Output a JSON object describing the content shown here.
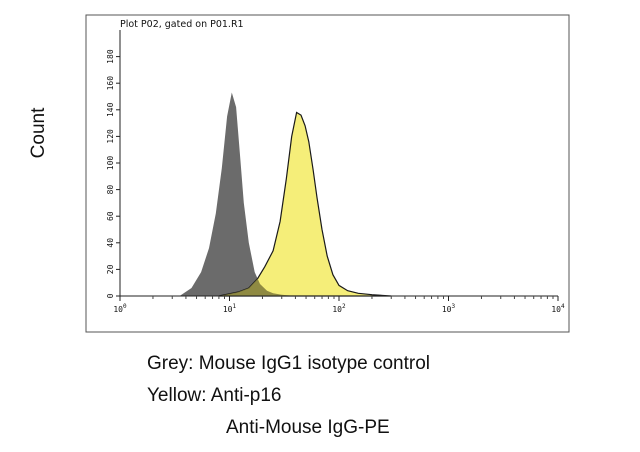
{
  "chart_data": {
    "type": "area",
    "title": "Plot P02, gated on P01.R1",
    "ylabel": "Count",
    "xlabel": "",
    "x_scale": "log",
    "xlim": [
      1,
      10000
    ],
    "ylim": [
      0,
      200
    ],
    "x_ticks": [
      {
        "value": 1,
        "base": "10",
        "exp": "0"
      },
      {
        "value": 10,
        "base": "10",
        "exp": "1"
      },
      {
        "value": 100,
        "base": "10",
        "exp": "2"
      },
      {
        "value": 1000,
        "base": "10",
        "exp": "3"
      },
      {
        "value": 10000,
        "base": "10",
        "exp": "4"
      }
    ],
    "y_ticks": [
      0,
      20,
      40,
      60,
      80,
      100,
      120,
      140,
      160,
      180
    ],
    "grid": false,
    "series": [
      {
        "name": "Grey: Mouse IgG1 isotype control",
        "color": "#6b6b6b",
        "x": [
          3.5,
          4.5,
          5.5,
          6.5,
          7.5,
          8.5,
          9.5,
          10.5,
          11.5,
          12.5,
          13.5,
          15,
          17,
          19,
          22,
          25,
          30,
          40,
          60
        ],
        "y": [
          0,
          6,
          18,
          36,
          62,
          96,
          135,
          153,
          142,
          105,
          70,
          40,
          18,
          9,
          4,
          2,
          1,
          0,
          0
        ]
      },
      {
        "name": "Yellow: Anti-p16",
        "color": "#f5ee79",
        "x": [
          8,
          12,
          15,
          18,
          21,
          25,
          29,
          33,
          37,
          41,
          45,
          49,
          53,
          58,
          63,
          70,
          78,
          88,
          100,
          120,
          150,
          200,
          300
        ],
        "y": [
          0,
          3,
          6,
          13,
          22,
          34,
          56,
          88,
          120,
          138,
          136,
          128,
          116,
          95,
          74,
          50,
          30,
          16,
          8,
          4,
          2,
          1,
          0
        ]
      }
    ],
    "captions": [
      "Grey: Mouse IgG1 isotype control",
      "Yellow: Anti-p16",
      "Anti-Mouse IgG-PE"
    ]
  }
}
